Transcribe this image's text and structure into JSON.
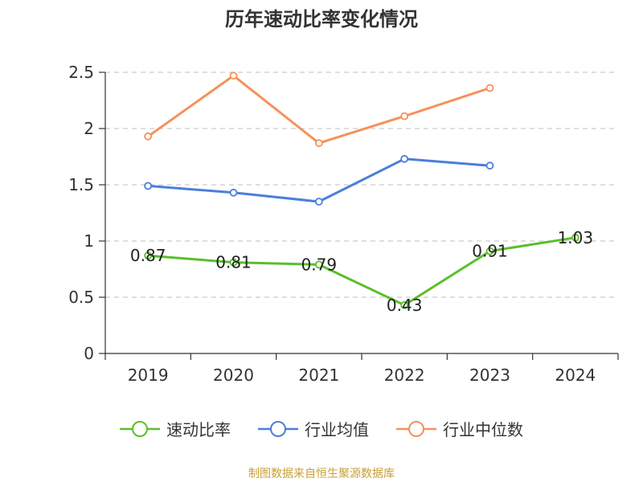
{
  "chart_data": {
    "type": "line",
    "title": "历年速动比率变化情况",
    "categories": [
      "2019",
      "2020",
      "2021",
      "2022",
      "2023",
      "2024"
    ],
    "ylim": [
      0,
      2.5
    ],
    "yticks": [
      "0",
      "0.5",
      "1",
      "1.5",
      "2",
      "2.5"
    ],
    "grid": true,
    "legend_position": "bottom",
    "series": [
      {
        "name": "速动比率",
        "color": "#5bbf2a",
        "show_labels": true,
        "labels": [
          "0.87",
          "0.81",
          "0.79",
          "0.43",
          "0.91",
          "1.03"
        ],
        "values": [
          0.87,
          0.81,
          0.79,
          0.43,
          0.91,
          1.03
        ]
      },
      {
        "name": "行业均值",
        "color": "#4b7fd9",
        "show_labels": false,
        "values": [
          1.49,
          1.43,
          1.35,
          1.73,
          1.67,
          null
        ]
      },
      {
        "name": "行业中位数",
        "color": "#f5915b",
        "show_labels": false,
        "values": [
          1.93,
          2.47,
          1.87,
          2.11,
          2.36,
          null
        ]
      }
    ]
  },
  "source": "制图数据来自恒生聚源数据库"
}
